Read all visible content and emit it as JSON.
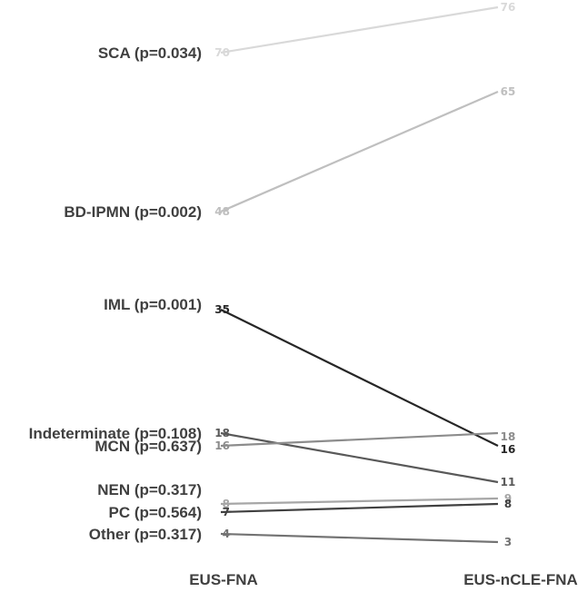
{
  "chart_data": {
    "type": "line",
    "x": [
      "EUS-FNA",
      "EUS-nCLE-FNA"
    ],
    "series": [
      {
        "name": "SCA (p=0.034)",
        "values": [
          70,
          76
        ],
        "color": "#d9d9d9"
      },
      {
        "name": "BD-IPMN (p=0.002)",
        "values": [
          48,
          65
        ],
        "color": "#bfbfbf"
      },
      {
        "name": "IML (p=0.001)",
        "values": [
          35,
          16
        ],
        "color": "#262626"
      },
      {
        "name": "Indeterminate (p=0.108)",
        "values": [
          18,
          11
        ],
        "color": "#595959"
      },
      {
        "name": "MCN (p=0.637)",
        "values": [
          16,
          18
        ],
        "color": "#8c8c8c"
      },
      {
        "name": "NEN (p=0.317)",
        "values": [
          8,
          9
        ],
        "color": "#a6a6a6"
      },
      {
        "name": "PC (p=0.564)",
        "values": [
          7,
          8
        ],
        "color": "#404040"
      },
      {
        "name": "Other (p=0.317)",
        "values": [
          4,
          3
        ],
        "color": "#737373"
      }
    ],
    "grid": false,
    "legend": "none"
  }
}
